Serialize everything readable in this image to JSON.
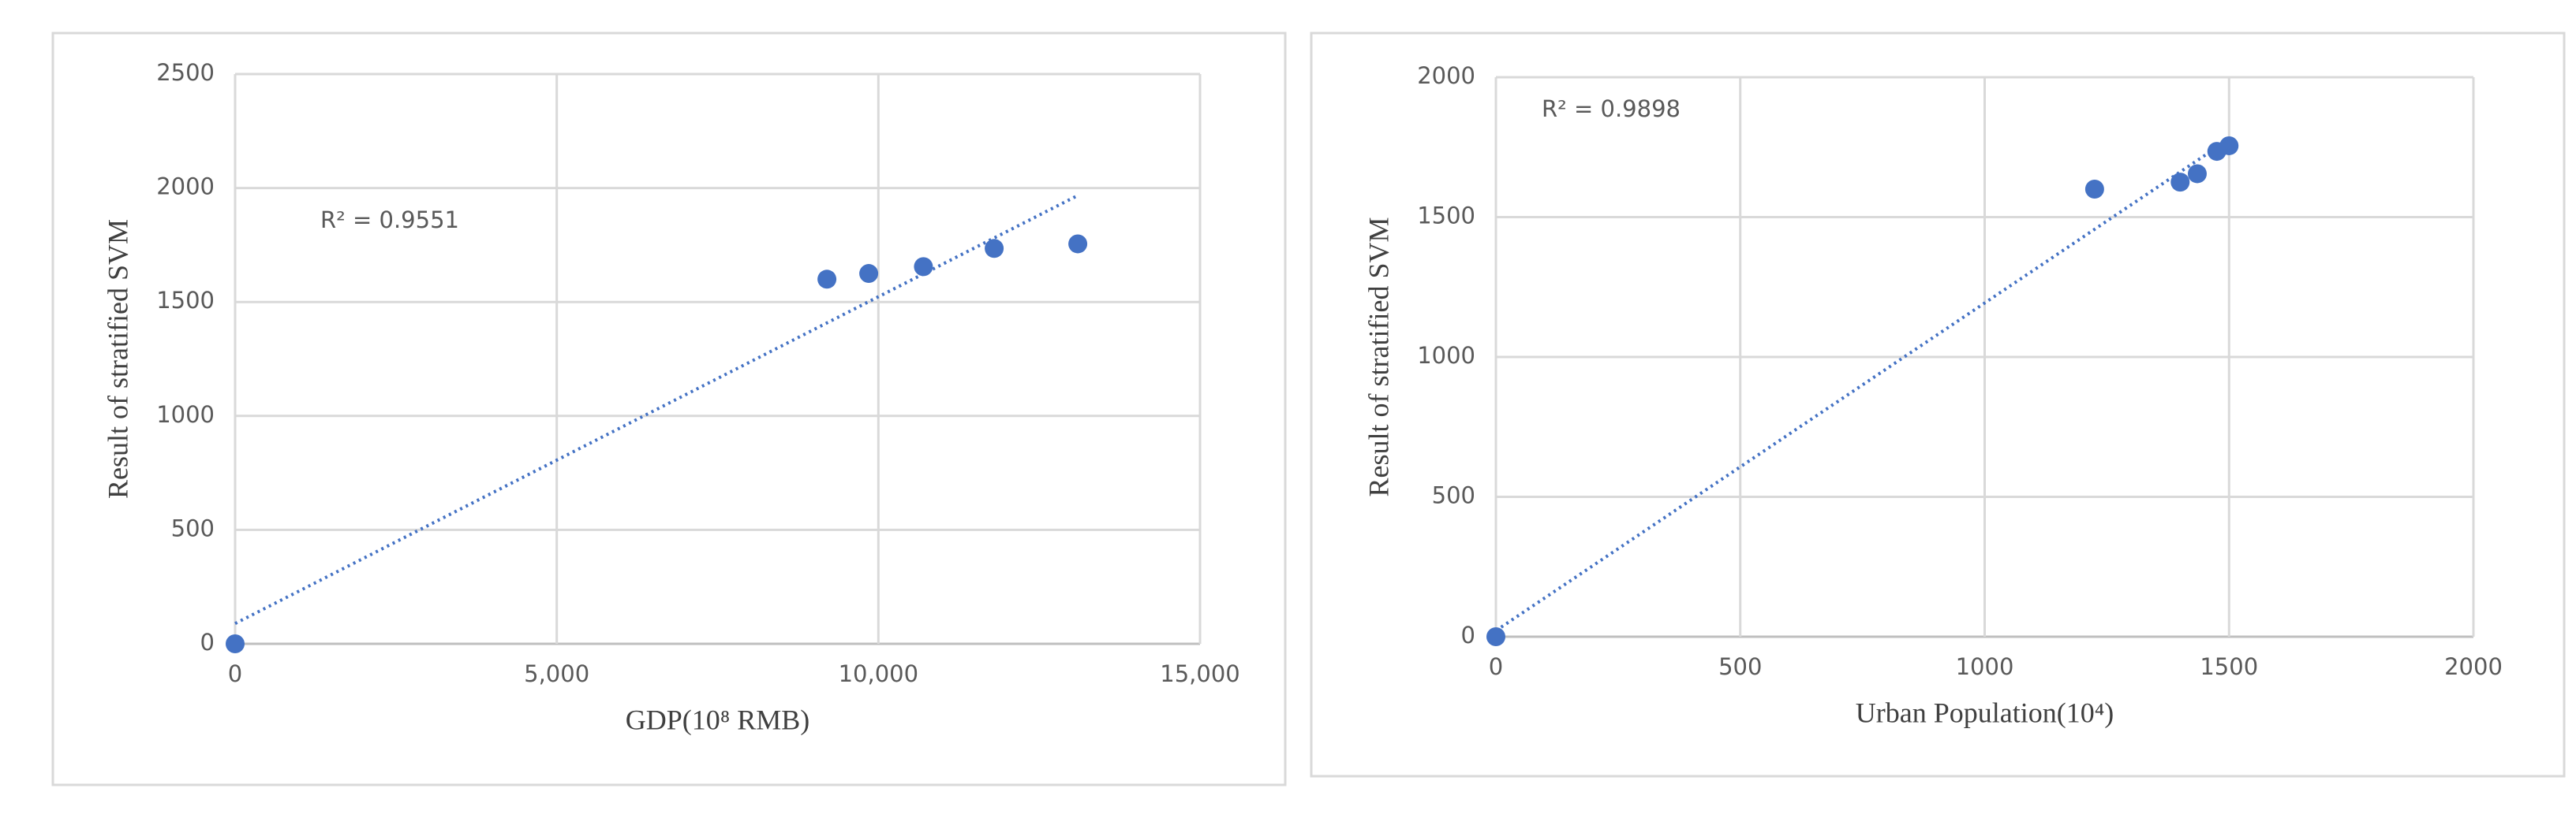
{
  "chart_data": [
    {
      "type": "scatter",
      "annotation": "R² = 0.9551",
      "x_label": "GDP(10⁸ RMB)",
      "y_label": "Result of stratified SVM",
      "x": [
        0,
        9200,
        9850,
        10700,
        11800,
        13100
      ],
      "values": [
        0,
        1600,
        1625,
        1655,
        1735,
        1755
      ],
      "color": "#4472c4",
      "trendline": "linear",
      "grid": true,
      "xlim": [
        0,
        15000
      ],
      "xticks": [
        0,
        {
          "value": 5000,
          "label": "5,000"
        },
        {
          "value": 10000,
          "label": "10,000"
        },
        {
          "value": 15000,
          "label": "15,000"
        }
      ],
      "ylim": [
        0,
        2500
      ],
      "yticks": [
        0,
        500,
        1000,
        1500,
        2000,
        2500
      ]
    },
    {
      "type": "scatter",
      "annotation": "R² = 0.9898",
      "x_label": "Urban Population(10⁴)",
      "y_label": "Result of stratified SVM",
      "x": [
        0,
        1225,
        1400,
        1435,
        1475,
        1500
      ],
      "values": [
        0,
        1600,
        1625,
        1655,
        1735,
        1755
      ],
      "color": "#4472c4",
      "trendline": "linear",
      "grid": true,
      "xlim": [
        0,
        2000
      ],
      "xticks": [
        0,
        500,
        1000,
        1500,
        2000
      ],
      "ylim": [
        0,
        2000
      ],
      "yticks": [
        0,
        500,
        1000,
        1500,
        2000
      ]
    }
  ]
}
